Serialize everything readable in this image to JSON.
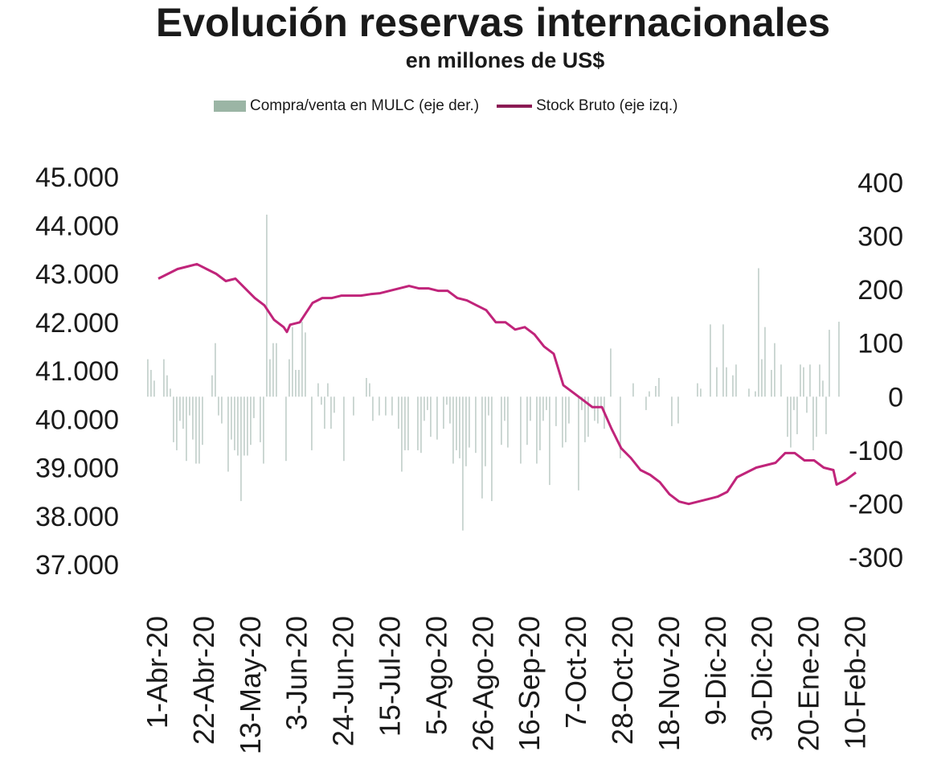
{
  "chart_data": {
    "type": "bar+line",
    "title": "Evolución reservas internacionales",
    "subtitle": "en millones de US$",
    "colors": {
      "bars": "#c7d3cf",
      "legend_bar": "#9bb5a5",
      "line": "#c0247a",
      "legend_line": "#8b1a54"
    },
    "legend": {
      "position": "top",
      "bar_label": "Compra/venta en MULC (eje der.)",
      "line_label": "Stock Bruto (eje izq.)"
    },
    "left_axis": {
      "ylim": [
        36000,
        45000
      ],
      "ticks": [
        37000,
        38000,
        39000,
        40000,
        41000,
        42000,
        43000,
        44000,
        45000
      ],
      "tick_labels": [
        "37.000",
        "38.000",
        "39.000",
        "40.000",
        "41.000",
        "42.000",
        "43.000",
        "44.000",
        "45.000"
      ]
    },
    "right_axis": {
      "ylim": [
        -400,
        400
      ],
      "ticks": [
        -300,
        -200,
        -100,
        0,
        100,
        200,
        300,
        400
      ],
      "tick_labels": [
        "-300",
        "-200",
        "-100",
        "0",
        "100",
        "200",
        "300",
        "400"
      ]
    },
    "x_tick_labels": [
      "1-Abr-20",
      "22-Abr-20",
      "13-May-20",
      "3-Jun-20",
      "24-Jun-20",
      "15-Jul-20",
      "5-Ago-20",
      "26-Ago-20",
      "16-Sep-20",
      "7-Oct-20",
      "28-Oct-20",
      "18-Nov-20",
      "9-Dic-20",
      "30-Dic-20",
      "20-Ene-20",
      "10-Feb-20"
    ],
    "grid": false,
    "line_series": {
      "name": "Stock Bruto (eje izq.)",
      "points": [
        [
          0,
          42900
        ],
        [
          3,
          43000
        ],
        [
          6,
          43100
        ],
        [
          9,
          43150
        ],
        [
          12,
          43200
        ],
        [
          15,
          43100
        ],
        [
          18,
          43000
        ],
        [
          21,
          42850
        ],
        [
          24,
          42900
        ],
        [
          27,
          42700
        ],
        [
          30,
          42500
        ],
        [
          33,
          42350
        ],
        [
          36,
          42050
        ],
        [
          39,
          41900
        ],
        [
          40,
          41800
        ],
        [
          41,
          41950
        ],
        [
          44,
          42000
        ],
        [
          46,
          42200
        ],
        [
          48,
          42400
        ],
        [
          51,
          42500
        ],
        [
          54,
          42500
        ],
        [
          57,
          42550
        ],
        [
          60,
          42550
        ],
        [
          63,
          42550
        ],
        [
          66,
          42580
        ],
        [
          69,
          42600
        ],
        [
          72,
          42650
        ],
        [
          75,
          42700
        ],
        [
          78,
          42750
        ],
        [
          81,
          42700
        ],
        [
          84,
          42700
        ],
        [
          87,
          42650
        ],
        [
          90,
          42650
        ],
        [
          93,
          42500
        ],
        [
          96,
          42450
        ],
        [
          99,
          42350
        ],
        [
          102,
          42250
        ],
        [
          105,
          42000
        ],
        [
          108,
          42000
        ],
        [
          111,
          41850
        ],
        [
          114,
          41900
        ],
        [
          117,
          41750
        ],
        [
          120,
          41500
        ],
        [
          123,
          41350
        ],
        [
          126,
          40700
        ],
        [
          129,
          40550
        ],
        [
          132,
          40400
        ],
        [
          135,
          40250
        ],
        [
          138,
          40250
        ],
        [
          141,
          39800
        ],
        [
          144,
          39400
        ],
        [
          147,
          39200
        ],
        [
          150,
          38950
        ],
        [
          153,
          38850
        ],
        [
          156,
          38700
        ],
        [
          159,
          38450
        ],
        [
          162,
          38300
        ],
        [
          165,
          38250
        ],
        [
          168,
          38300
        ],
        [
          171,
          38350
        ],
        [
          174,
          38400
        ],
        [
          177,
          38500
        ],
        [
          180,
          38800
        ],
        [
          183,
          38900
        ],
        [
          186,
          39000
        ],
        [
          189,
          39050
        ],
        [
          192,
          39100
        ],
        [
          195,
          39300
        ],
        [
          198,
          39300
        ],
        [
          201,
          39150
        ],
        [
          204,
          39150
        ],
        [
          207,
          39000
        ],
        [
          210,
          38950
        ],
        [
          211,
          38650
        ],
        [
          214,
          38750
        ],
        [
          217,
          38900
        ]
      ]
    },
    "bar_series": {
      "name": "Compra/venta en MULC (eje der.)",
      "values": [
        70,
        50,
        30,
        0,
        0,
        70,
        40,
        15,
        -85,
        -100,
        -45,
        -60,
        -120,
        -35,
        -80,
        -125,
        -125,
        -90,
        0,
        0,
        40,
        100,
        -35,
        -50,
        0,
        -140,
        -80,
        -100,
        -110,
        -195,
        -110,
        -110,
        -90,
        -40,
        0,
        -85,
        -125,
        340,
        70,
        100,
        100,
        0,
        0,
        -120,
        70,
        130,
        50,
        50,
        140,
        120,
        0,
        -100,
        0,
        25,
        -15,
        -60,
        25,
        -60,
        -30,
        0,
        0,
        -120,
        0,
        0,
        -35,
        0,
        0,
        0,
        35,
        25,
        -45,
        0,
        -35,
        0,
        -35,
        0,
        -35,
        0,
        -60,
        -140,
        -100,
        -100,
        0,
        0,
        -100,
        -105,
        -45,
        -25,
        -75,
        0,
        -80,
        0,
        -60,
        -15,
        -50,
        -125,
        -100,
        -115,
        -250,
        -130,
        -95,
        0,
        -105,
        0,
        -190,
        -130,
        -35,
        -195,
        0,
        0,
        -90,
        -45,
        -95,
        0,
        0,
        0,
        -125,
        0,
        -90,
        -45,
        0,
        -125,
        -100,
        -45,
        -25,
        -165,
        0,
        -55,
        0,
        -95,
        -85,
        -50,
        0,
        0,
        -175,
        -25,
        -85,
        -75,
        0,
        -45,
        -50,
        -20,
        -60,
        0,
        90,
        0,
        0,
        -115,
        0,
        0,
        0,
        25,
        0,
        0,
        0,
        -25,
        10,
        0,
        20,
        35,
        0,
        0,
        0,
        -55,
        0,
        -50,
        0,
        0,
        0,
        0,
        0,
        25,
        15,
        0,
        0,
        135,
        0,
        55,
        0,
        135,
        55,
        0,
        40,
        60,
        0,
        0,
        0,
        15,
        0,
        10,
        240,
        70,
        130,
        0,
        50,
        100,
        0,
        60,
        0,
        -75,
        -95,
        -25,
        -70,
        60,
        55,
        -30,
        60,
        -100,
        -75,
        60,
        30,
        -70,
        125,
        0,
        0,
        140
      ]
    },
    "bar_x_offset": 1
  }
}
